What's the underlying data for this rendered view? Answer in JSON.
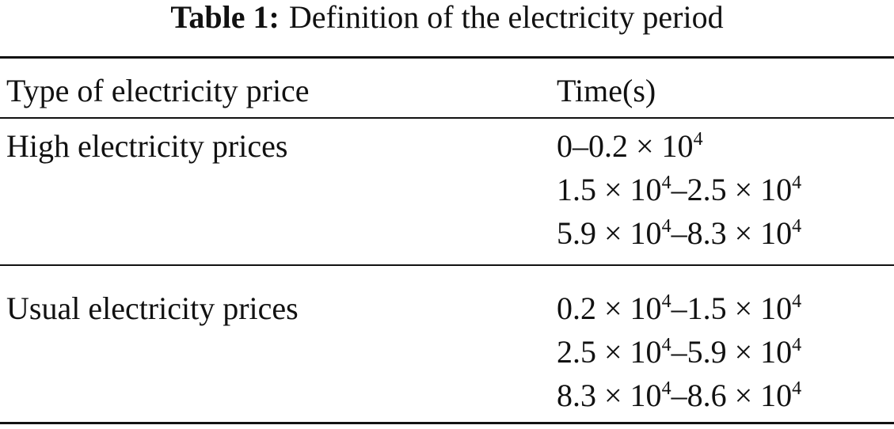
{
  "caption": {
    "label": "Table 1:",
    "text": "Definition of the electricity period"
  },
  "table": {
    "header": [
      "Type of electricity price",
      "Time(s)"
    ],
    "rows": [
      {
        "type": "High electricity prices",
        "times": [
          [
            "0–0.2 × 10",
            "4"
          ],
          [
            "1.5 × 10",
            "4",
            "–2.5 × 10",
            "4"
          ],
          [
            "5.9 × 10",
            "4",
            "–8.3 × 10",
            "4"
          ]
        ]
      },
      {
        "type": "Usual electricity prices",
        "times": [
          [
            "0.2 × 10",
            "4",
            "–1.5 × 10",
            "4"
          ],
          [
            "2.5 × 10",
            "4",
            "–5.9 × 10",
            "4"
          ],
          [
            "8.3 × 10",
            "4",
            "–8.6 × 10",
            "4"
          ]
        ]
      }
    ]
  }
}
